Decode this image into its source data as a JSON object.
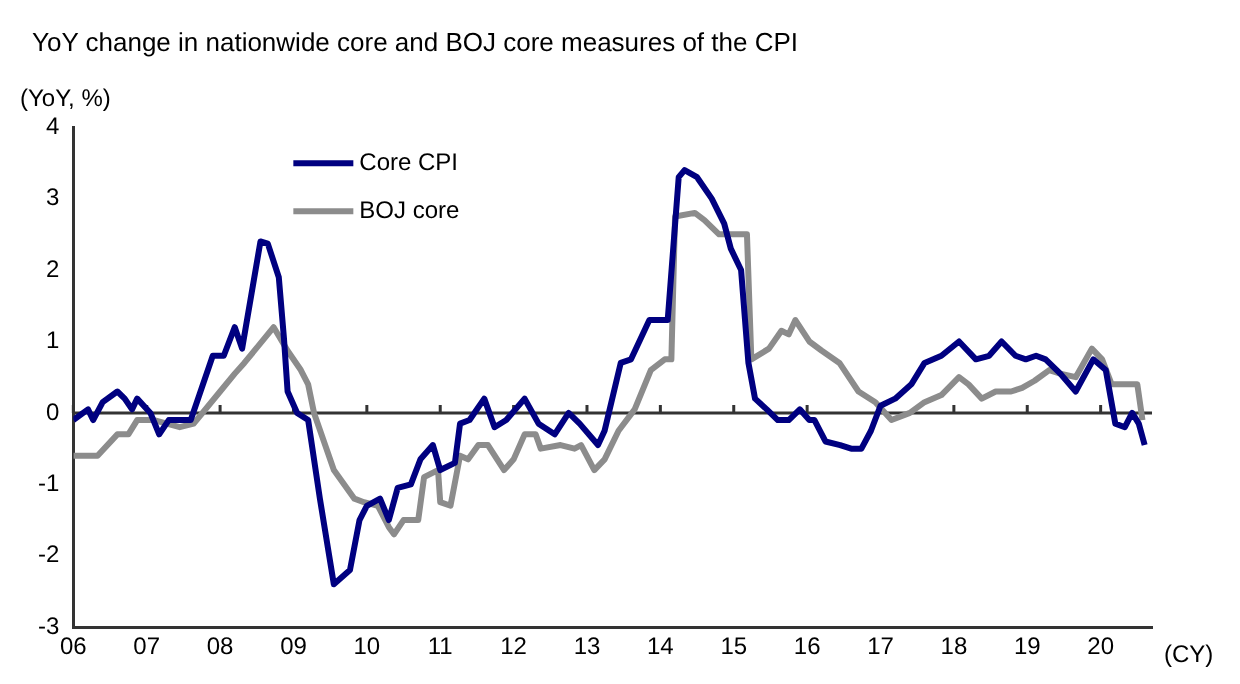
{
  "chart_data": {
    "type": "line",
    "title": "YoY change in nationwide core and BOJ core measures of the CPI",
    "ylabel": "(YoY, %)",
    "xlabel": "(CY)",
    "xlim": [
      2006,
      2020.7
    ],
    "xticks": [
      {
        "value": 2006,
        "label": "06"
      },
      {
        "value": 2007,
        "label": "07"
      },
      {
        "value": 2008,
        "label": "08"
      },
      {
        "value": 2009,
        "label": "09"
      },
      {
        "value": 2010,
        "label": "10"
      },
      {
        "value": 2011,
        "label": "11"
      },
      {
        "value": 2012,
        "label": "12"
      },
      {
        "value": 2013,
        "label": "13"
      },
      {
        "value": 2014,
        "label": "14"
      },
      {
        "value": 2015,
        "label": "15"
      },
      {
        "value": 2016,
        "label": "16"
      },
      {
        "value": 2017,
        "label": "17"
      },
      {
        "value": 2018,
        "label": "18"
      },
      {
        "value": 2019,
        "label": "19"
      },
      {
        "value": 2020,
        "label": "20"
      }
    ],
    "ylim": [
      -3,
      4
    ],
    "yticks": [
      -3,
      -2,
      -1,
      0,
      1,
      2,
      3,
      4
    ],
    "grid": false,
    "legend": "top left",
    "marker": "none",
    "line_style": "solid",
    "ref_lines": [
      {
        "axis": "y",
        "value": 0,
        "color": "#333333"
      }
    ],
    "series": [
      {
        "name": "Core CPI",
        "color": "#000080",
        "x": [
          2006,
          2006.2,
          2006.27,
          2006.4,
          2006.6,
          2006.7,
          2006.8,
          2006.87,
          2007.05,
          2007.17,
          2007.3,
          2007.6,
          2007.9,
          2008.05,
          2008.2,
          2008.3,
          2008.55,
          2008.65,
          2008.8,
          2008.87,
          2008.92,
          2009.05,
          2009.2,
          2009.36,
          2009.55,
          2009.77,
          2009.9,
          2010,
          2010.18,
          2010.3,
          2010.42,
          2010.6,
          2010.73,
          2010.9,
          2011,
          2011.2,
          2011.27,
          2011.4,
          2011.6,
          2011.74,
          2011.9,
          2012.15,
          2012.34,
          2012.56,
          2012.75,
          2012.9,
          2013.15,
          2013.24,
          2013.46,
          2013.6,
          2013.85,
          2014.1,
          2014.25,
          2014.33,
          2014.5,
          2014.7,
          2014.87,
          2014.96,
          2015.1,
          2015.2,
          2015.29,
          2015.45,
          2015.6,
          2015.75,
          2015.9,
          2016.03,
          2016.1,
          2016.25,
          2016.45,
          2016.6,
          2016.74,
          2016.87,
          2017,
          2017.2,
          2017.42,
          2017.6,
          2017.83,
          2018.07,
          2018.3,
          2018.48,
          2018.65,
          2018.84,
          2018.98,
          2019.12,
          2019.25,
          2019.45,
          2019.66,
          2019.9,
          2020.07,
          2020.2,
          2020.33,
          2020.43,
          2020.52,
          2020.6
        ],
        "values": [
          -0.1,
          0.05,
          -0.1,
          0.15,
          0.3,
          0.2,
          0.05,
          0.2,
          0,
          -0.3,
          -0.1,
          -0.1,
          0.8,
          0.8,
          1.2,
          0.9,
          2.4,
          2.37,
          1.9,
          1.05,
          0.3,
          0,
          -0.1,
          -1.2,
          -2.4,
          -2.2,
          -1.5,
          -1.3,
          -1.2,
          -1.5,
          -1.05,
          -1,
          -0.65,
          -0.45,
          -0.8,
          -0.7,
          -0.15,
          -0.1,
          0.2,
          -0.2,
          -0.1,
          0.2,
          -0.15,
          -0.3,
          0,
          -0.15,
          -0.45,
          -0.25,
          0.7,
          0.75,
          1.3,
          1.3,
          3.3,
          3.4,
          3.3,
          3,
          2.65,
          2.3,
          2,
          0.7,
          0.2,
          0.05,
          -0.1,
          -0.1,
          0.05,
          -0.1,
          -0.1,
          -0.4,
          -0.45,
          -0.5,
          -0.5,
          -0.25,
          0.1,
          0.2,
          0.4,
          0.7,
          0.8,
          1,
          0.75,
          0.8,
          1,
          0.8,
          0.75,
          0.8,
          0.75,
          0.55,
          0.3,
          0.75,
          0.6,
          -0.15,
          -0.2,
          0,
          -0.15,
          -0.45
        ]
      },
      {
        "name": "BOJ core",
        "color": "#8c8c8c",
        "x": [
          2006,
          2006.33,
          2006.6,
          2006.75,
          2006.87,
          2007.1,
          2007.45,
          2007.64,
          2008,
          2008.2,
          2008.33,
          2008.73,
          2008.92,
          2009.1,
          2009.2,
          2009.28,
          2009.55,
          2009.83,
          2009.96,
          2010.15,
          2010.3,
          2010.37,
          2010.5,
          2010.7,
          2010.78,
          2010.97,
          2011,
          2011.14,
          2011.27,
          2011.38,
          2011.52,
          2011.65,
          2011.87,
          2012,
          2012.15,
          2012.3,
          2012.37,
          2012.64,
          2012.83,
          2012.92,
          2013.1,
          2013.24,
          2013.43,
          2013.65,
          2013.87,
          2014.06,
          2014.15,
          2014.2,
          2014.47,
          2014.6,
          2014.8,
          2015.18,
          2015.24,
          2015.48,
          2015.65,
          2015.75,
          2015.84,
          2016.03,
          2016.2,
          2016.44,
          2016.7,
          2016.93,
          2017.15,
          2017.4,
          2017.6,
          2017.83,
          2018.07,
          2018.2,
          2018.38,
          2018.57,
          2018.78,
          2018.93,
          2019.1,
          2019.3,
          2019.45,
          2019.66,
          2019.88,
          2020.02,
          2020.15,
          2020.35,
          2020.5,
          2020.57
        ],
        "values": [
          -0.6,
          -0.6,
          -0.3,
          -0.3,
          -0.1,
          -0.1,
          -0.2,
          -0.15,
          0.3,
          0.55,
          0.7,
          1.2,
          0.87,
          0.6,
          0.4,
          0,
          -0.8,
          -1.2,
          -1.25,
          -1.3,
          -1.6,
          -1.7,
          -1.5,
          -1.5,
          -0.9,
          -0.8,
          -1.25,
          -1.3,
          -0.6,
          -0.65,
          -0.45,
          -0.45,
          -0.8,
          -0.65,
          -0.3,
          -0.3,
          -0.5,
          -0.45,
          -0.5,
          -0.45,
          -0.8,
          -0.65,
          -0.25,
          0.05,
          0.6,
          0.75,
          0.75,
          2.75,
          2.8,
          2.7,
          2.5,
          2.5,
          0.75,
          0.9,
          1.15,
          1.1,
          1.3,
          1,
          0.87,
          0.7,
          0.3,
          0.15,
          -0.1,
          0,
          0.15,
          0.25,
          0.5,
          0.4,
          0.2,
          0.3,
          0.3,
          0.35,
          0.45,
          0.6,
          0.55,
          0.5,
          0.9,
          0.75,
          0.4,
          0.4,
          0.4,
          -0.1
        ]
      }
    ]
  }
}
